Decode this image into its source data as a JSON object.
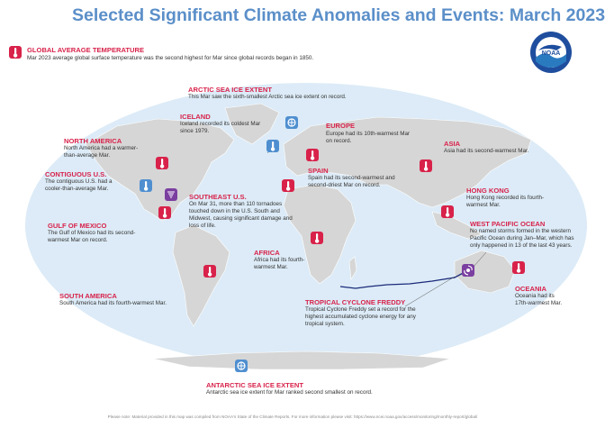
{
  "title": "Selected Significant Climate Anomalies and Events: March 2023",
  "logo_text": "NOAA",
  "colors": {
    "warm": "#d8224a",
    "cool": "#4f8fd0",
    "storm": "#7b3fa0",
    "title": "#5b8fc9",
    "ocean": "#dcebf7",
    "land": "#d6d6d6"
  },
  "annotations": {
    "global": {
      "title": "GLOBAL AVERAGE TEMPERATURE",
      "text": "Mar 2023 average global surface temperature was the second highest for Mar since global records began in 1850.",
      "icon": "thermometer-icon"
    },
    "arctic": {
      "title": "ARCTIC SEA ICE EXTENT",
      "text": "This Mar saw the sixth-smallest Arctic sea ice extent on record.",
      "icon": "sea-ice-icon"
    },
    "iceland": {
      "title": "ICELAND",
      "text": "Iceland recorded its coldest Mar since 1979.",
      "icon": "thermometer-icon"
    },
    "europe": {
      "title": "EUROPE",
      "text": "Europe had its 10th-warmest Mar on record.",
      "icon": "thermometer-icon"
    },
    "asia": {
      "title": "ASIA",
      "text": "Asia had its second-warmest Mar.",
      "icon": "thermometer-icon"
    },
    "north_america": {
      "title": "NORTH AMERICA",
      "text": "North America had a warmer-than-average Mar.",
      "icon": "thermometer-icon"
    },
    "contiguous_us": {
      "title": "CONTIGUOUS U.S.",
      "text": "The contiguous U.S. had a cooler-than-average Mar.",
      "icon": "thermometer-icon"
    },
    "southeast_us": {
      "title": "SOUTHEAST U.S.",
      "text": "On Mar 31, more than 110 tornadoes touched down in the U.S. South and Midwest, causing significant damage and loss of life.",
      "icon": "tornado-icon"
    },
    "spain": {
      "title": "SPAIN",
      "text": "Spain had its second-warmest and second-driest Mar on record.",
      "icon": "thermometer-icon"
    },
    "hong_kong": {
      "title": "HONG KONG",
      "text": "Hong Kong recorded its fourth-warmest Mar.",
      "icon": "thermometer-icon"
    },
    "gulf_of_mexico": {
      "title": "GULF OF MEXICO",
      "text": "The Gulf of Mexico had its second-warmest Mar on record.",
      "icon": "thermometer-icon"
    },
    "west_pacific": {
      "title": "WEST PACIFIC OCEAN",
      "text": "No named storms formed in the western Pacific Ocean during Jan–Mar, which has only happened in 13 of the last 43 years."
    },
    "africa": {
      "title": "AFRICA",
      "text": "Africa had its fourth-warmest Mar.",
      "icon": "thermometer-icon"
    },
    "south_america": {
      "title": "SOUTH AMERICA",
      "text": "South America had its fourth-warmest Mar.",
      "icon": "thermometer-icon"
    },
    "freddy": {
      "title": "TROPICAL CYCLONE FREDDY",
      "text": "Tropical Cyclone Freddy set a record for the highest accumulated cyclone energy for any tropical system.",
      "icon": "cyclone-icon"
    },
    "oceania": {
      "title": "OCEANIA",
      "text": "Oceania had its 17th-warmest Mar.",
      "icon": "thermometer-icon"
    },
    "antarctic": {
      "title": "ANTARCTIC SEA ICE EXTENT",
      "text": "Antarctic sea ice extent for Mar ranked second smallest on record.",
      "icon": "sea-ice-icon"
    }
  },
  "footer": "Please note: Material provided in this map was compiled from NOAA's State of the Climate Reports. For more information please visit: https://www.ncei.noaa.gov/access/monitoring/monthly-report/global/"
}
